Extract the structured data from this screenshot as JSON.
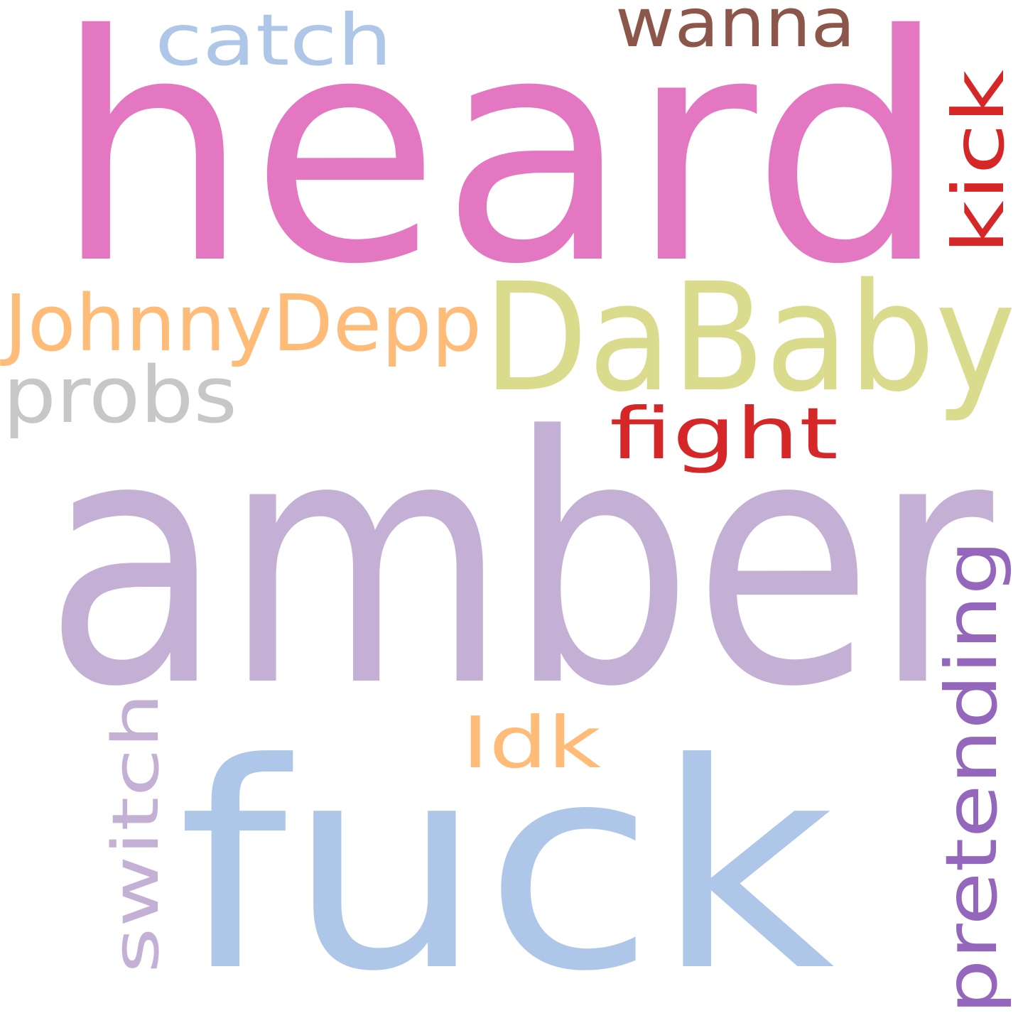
{
  "words": [
    {
      "text": "heard",
      "color": "#e377c2",
      "orientation": "horizontal"
    },
    {
      "text": "amber",
      "color": "#c5b0d5",
      "orientation": "horizontal"
    },
    {
      "text": "fuck",
      "color": "#aec7e8",
      "orientation": "horizontal"
    },
    {
      "text": "DaBaby",
      "color": "#dbdb8d",
      "orientation": "horizontal"
    },
    {
      "text": "JohnnyDepp",
      "color": "#ffbb78",
      "orientation": "horizontal"
    },
    {
      "text": "probs",
      "color": "#c7c7c7",
      "orientation": "horizontal"
    },
    {
      "text": "fight",
      "color": "#d62728",
      "orientation": "horizontal"
    },
    {
      "text": "catch",
      "color": "#aec7e8",
      "orientation": "horizontal"
    },
    {
      "text": "wanna",
      "color": "#8c564b",
      "orientation": "horizontal"
    },
    {
      "text": "kick",
      "color": "#d62728",
      "orientation": "vertical"
    },
    {
      "text": "pretending",
      "color": "#9467bd",
      "orientation": "vertical"
    },
    {
      "text": "switch",
      "color": "#c5b0d5",
      "orientation": "vertical"
    },
    {
      "text": "Idk",
      "color": "#ffbb78",
      "orientation": "horizontal"
    }
  ]
}
